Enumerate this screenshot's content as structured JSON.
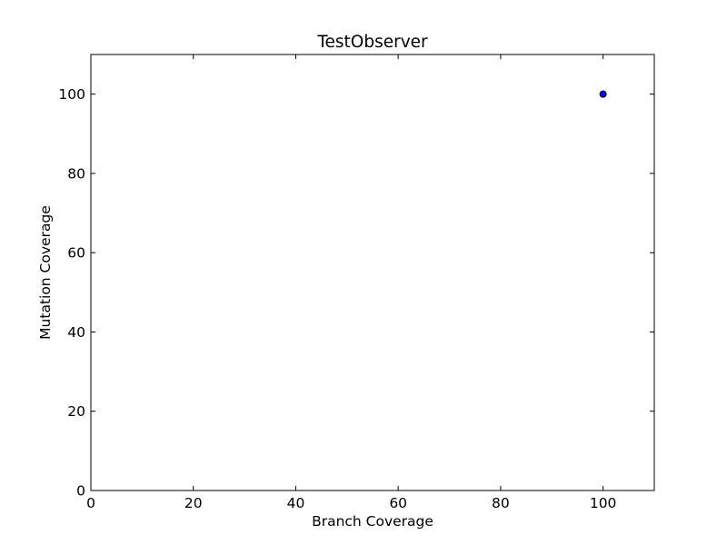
{
  "chart_data": {
    "type": "scatter",
    "title": "TestObserver",
    "xlabel": "Branch Coverage",
    "ylabel": "Mutation Coverage",
    "xlim": [
      0,
      110
    ],
    "ylim": [
      0,
      110
    ],
    "xticks": [
      "0",
      "20",
      "40",
      "60",
      "80",
      "100"
    ],
    "yticks": [
      "0",
      "20",
      "40",
      "60",
      "80",
      "100"
    ],
    "grid": false,
    "series": [
      {
        "points": [
          {
            "x": 100,
            "y": 100
          }
        ],
        "color": "#0000ff",
        "edge_color": "#000000"
      }
    ]
  }
}
